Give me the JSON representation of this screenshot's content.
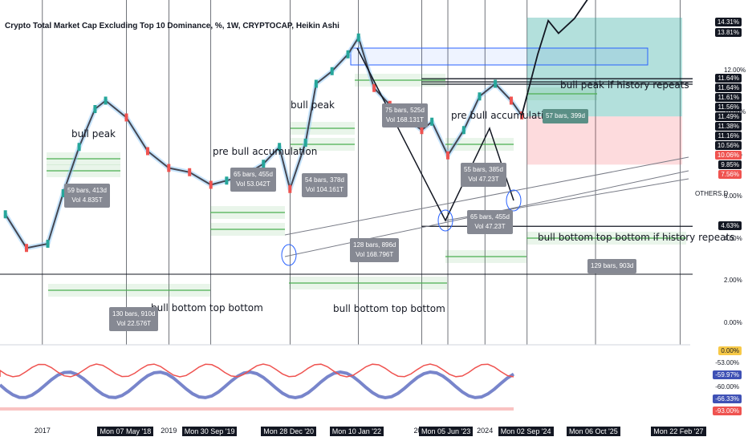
{
  "title": "Crypto Total Market Cap Excluding Top 10 Dominance, %, 1W, CRYPTOCAP, Heikin Ashi",
  "axis_unit": "%",
  "symbol_label": "OTHERS.D",
  "colors": {
    "up": "#26a69a",
    "down": "#ef5350",
    "green_line": "#4caf50",
    "blue_rect": "#2962ff",
    "target_box": "rgba(38,166,154,0.35)",
    "stop_box": "rgba(242,54,69,0.18)"
  },
  "x_axis_labels": [
    "2017",
    "Mon 07 May '18",
    "2019",
    "Mon 30 Sep '19",
    "Mon 28 Dec '20",
    "Mon 10 Jan '22",
    "2023",
    "Mon 05 Jun '23",
    "2024",
    "Mon 02 Sep '24",
    "Mon 06 Oct '25",
    "Mon 22 Feb '27"
  ],
  "y_axis_labels": [
    "12.00%",
    "10.00%",
    "8.00%",
    "6.00%",
    "4.00%",
    "2.00%",
    "0.00%"
  ],
  "price_levels": [
    {
      "label": "14.31%",
      "y": 14.31,
      "color": "#131722"
    },
    {
      "label": "13.81%",
      "y": 13.81,
      "color": "#131722"
    },
    {
      "label": "11.64%",
      "y": 11.64,
      "color": "#131722"
    },
    {
      "label": "11.64%",
      "y": 11.64,
      "color": "#131722"
    },
    {
      "label": "11.61%",
      "y": 11.61,
      "color": "#131722"
    },
    {
      "label": "11.56%",
      "y": 11.56,
      "color": "#131722"
    },
    {
      "label": "11.49%",
      "y": 11.49,
      "color": "#131722"
    },
    {
      "label": "11.38%",
      "y": 11.38,
      "color": "#131722"
    },
    {
      "label": "11.16%",
      "y": 11.16,
      "color": "#131722"
    },
    {
      "label": "10.56%",
      "y": 10.56,
      "color": "#131722"
    },
    {
      "label": "10.06%",
      "y": 10.06,
      "color": "#ef5350"
    },
    {
      "label": "9.85%",
      "y": 9.85,
      "color": "#131722"
    },
    {
      "label": "7.56%",
      "y": 7.56,
      "color": "#ef5350"
    },
    {
      "label": "4.63%",
      "y": 4.63,
      "color": "#131722"
    }
  ],
  "oscillator_labels": [
    {
      "label": "0.00%",
      "color": "#f7c948"
    },
    {
      "label": "-53.00%",
      "color": "#ffffff"
    },
    {
      "label": "-59.97%",
      "color": "#3f51b5"
    },
    {
      "label": "-60.00%",
      "color": "#ffffff"
    },
    {
      "label": "-66.33%",
      "color": "#3f51b5"
    },
    {
      "label": "-93.00%",
      "color": "#ef5350"
    }
  ],
  "annotations": {
    "bull_peak_1": "bull peak",
    "bull_peak_2": "bull peak",
    "pre_bull_1": "pre bull accumulation",
    "pre_bull_2": "pre bull accumulation",
    "bull_bottom_1": "bull bottom top bottom",
    "bull_bottom_2": "bull bottom top bottom",
    "bull_peak_repeat": "bull peak if history repeats",
    "bull_bottom_repeat": "bull bottom top bottom if history repeats"
  },
  "stat_boxes": [
    {
      "line1": "59 bars, 413d",
      "line2": "Vol 4.835T"
    },
    {
      "line1": "65 bars, 455d",
      "line2": "Vol 53.042T"
    },
    {
      "line1": "54 bars, 378d",
      "line2": "Vol 104.161T"
    },
    {
      "line1": "75 bars, 525d",
      "line2": "Vol 168.131T"
    },
    {
      "line1": "130 bars, 910d",
      "line2": "Vol 22.576T"
    },
    {
      "line1": "128 bars, 896d",
      "line2": "Vol 168.796T"
    },
    {
      "line1": "55 bars, 385d",
      "line2": "Vol 47.23T"
    },
    {
      "line1": "65 bars, 455d",
      "line2": "Vol 47.23T"
    },
    {
      "line1": "57 bars, 399d",
      "line2": ""
    },
    {
      "line1": "129 bars, 903d",
      "line2": ""
    }
  ],
  "chart_data": {
    "type": "line",
    "title": "Crypto Total Market Cap Excluding Top 10 Dominance, %, 1W, CRYPTOCAP, Heikin Ashi",
    "ylabel": "%",
    "ylim": [
      -1,
      15
    ],
    "grid": true,
    "series": [
      {
        "name": "OTHERS.D",
        "x": [
          "2016-06",
          "2016-10",
          "2017-02",
          "2017-05",
          "2017-08",
          "2017-11",
          "2018-01",
          "2018-05",
          "2018-09",
          "2019-01",
          "2019-05",
          "2019-09",
          "2019-12",
          "2020-03",
          "2020-07",
          "2020-10",
          "2020-12",
          "2021-03",
          "2021-05",
          "2021-08",
          "2021-11",
          "2022-01",
          "2022-04",
          "2022-07",
          "2022-10",
          "2023-01",
          "2023-03",
          "2023-06",
          "2023-09",
          "2023-12",
          "2024-03",
          "2024-06",
          "2024-08"
        ],
        "values": [
          5.2,
          3.6,
          3.8,
          6.2,
          8.4,
          10.2,
          10.6,
          9.8,
          8.2,
          7.4,
          7.2,
          6.6,
          6.8,
          7.0,
          7.6,
          8.4,
          6.4,
          8.6,
          11.4,
          12.0,
          12.8,
          13.6,
          11.2,
          10.4,
          9.8,
          9.2,
          9.6,
          8.0,
          9.2,
          10.8,
          11.4,
          10.6,
          9.9
        ]
      }
    ],
    "projection": {
      "name": "if history repeats",
      "x": [
        "2024-08",
        "2024-11",
        "2025-01",
        "2025-03",
        "2025-06",
        "2025-09"
      ],
      "values": [
        9.9,
        12.8,
        14.4,
        13.8,
        14.5,
        15.6
      ]
    },
    "horizontal_levels": [
      11.64,
      11.49,
      11.38,
      4.63
    ]
  }
}
